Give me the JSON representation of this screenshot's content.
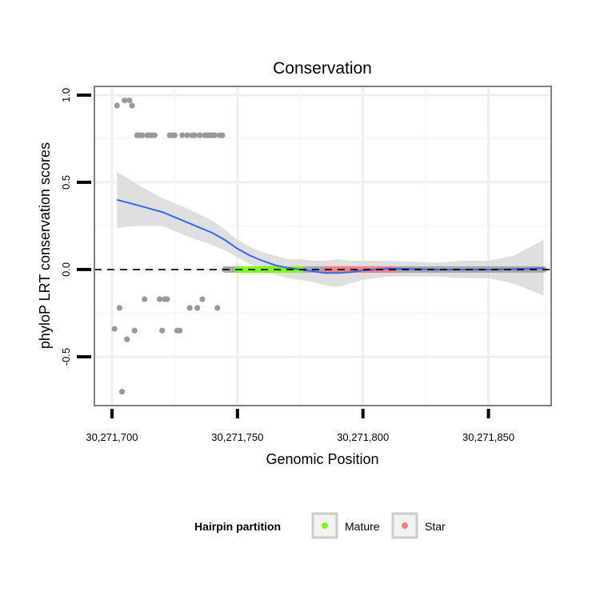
{
  "chart_data": {
    "type": "scatter",
    "title": "Conservation",
    "xlabel": "Genomic Position",
    "ylabel": "phyloP LRT conservation scores",
    "xlim": [
      30271693,
      30271875
    ],
    "ylim": [
      -0.78,
      1.05
    ],
    "x_ticks": [
      30271700,
      30271750,
      30271800,
      30271850
    ],
    "x_tick_labels": [
      "30,271,700",
      "30,271,750",
      "30,271,800",
      "30,271,850"
    ],
    "y_ticks": [
      -0.5,
      0.0,
      0.5,
      1.0
    ],
    "y_tick_labels": [
      "-0.5",
      "0.0",
      "0.5",
      "1.0"
    ],
    "reference_line": {
      "y": 0,
      "style": "dashed",
      "color": "#000000"
    },
    "colors": {
      "points": "#999999",
      "mature": "#7FFF00",
      "star": "#F08080",
      "smooth": "#3366FF",
      "ribbon": "#D9D9D9",
      "band": "#A6A6A6"
    },
    "points": [
      {
        "x": 30271701,
        "y": -0.34
      },
      {
        "x": 30271702,
        "y": 0.94
      },
      {
        "x": 30271703,
        "y": -0.22
      },
      {
        "x": 30271704,
        "y": -0.7
      },
      {
        "x": 30271705,
        "y": 0.97
      },
      {
        "x": 30271706,
        "y": -0.4
      },
      {
        "x": 30271707,
        "y": 0.97
      },
      {
        "x": 30271708,
        "y": 0.94
      },
      {
        "x": 30271709,
        "y": -0.35
      },
      {
        "x": 30271710,
        "y": 0.77
      },
      {
        "x": 30271711,
        "y": 0.77
      },
      {
        "x": 30271712,
        "y": 0.77
      },
      {
        "x": 30271713,
        "y": -0.17
      },
      {
        "x": 30271714,
        "y": 0.77
      },
      {
        "x": 30271715,
        "y": 0.77
      },
      {
        "x": 30271716,
        "y": 0.77
      },
      {
        "x": 30271717,
        "y": 0.77
      },
      {
        "x": 30271719,
        "y": -0.17
      },
      {
        "x": 30271720,
        "y": -0.35
      },
      {
        "x": 30271721,
        "y": -0.17
      },
      {
        "x": 30271722,
        "y": -0.17
      },
      {
        "x": 30271723,
        "y": 0.77
      },
      {
        "x": 30271724,
        "y": 0.77
      },
      {
        "x": 30271725,
        "y": 0.77
      },
      {
        "x": 30271726,
        "y": -0.35
      },
      {
        "x": 30271727,
        "y": -0.35
      },
      {
        "x": 30271728,
        "y": 0.77
      },
      {
        "x": 30271730,
        "y": 0.77
      },
      {
        "x": 30271731,
        "y": -0.22
      },
      {
        "x": 30271732,
        "y": 0.77
      },
      {
        "x": 30271733,
        "y": 0.77
      },
      {
        "x": 30271734,
        "y": -0.22
      },
      {
        "x": 30271735,
        "y": 0.77
      },
      {
        "x": 30271736,
        "y": -0.17
      },
      {
        "x": 30271737,
        "y": 0.77
      },
      {
        "x": 30271738,
        "y": 0.77
      },
      {
        "x": 30271739,
        "y": 0.77
      },
      {
        "x": 30271740,
        "y": 0.77
      },
      {
        "x": 30271741,
        "y": 0.77
      },
      {
        "x": 30271742,
        "y": -0.22
      },
      {
        "x": 30271743,
        "y": 0.77
      },
      {
        "x": 30271744,
        "y": 0.77
      }
    ],
    "zero_band": {
      "x_start": 30271745,
      "x_end": 30271872,
      "y": 0
    },
    "partitions": [
      {
        "name": "Mature",
        "x_start": 30271750,
        "x_end": 30271775,
        "y": 0
      },
      {
        "name": "Star",
        "x_start": 30271785,
        "x_end": 30271812,
        "y": 0
      }
    ],
    "smooth": {
      "x": [
        30271702,
        30271710,
        30271720,
        30271730,
        30271740,
        30271745,
        30271750,
        30271755,
        30271760,
        30271765,
        30271770,
        30271775,
        30271780,
        30271785,
        30271790,
        30271795,
        30271800,
        30271810,
        30271820,
        30271830,
        30271840,
        30271850,
        30271860,
        30271872
      ],
      "y": [
        0.4,
        0.37,
        0.33,
        0.27,
        0.21,
        0.17,
        0.12,
        0.08,
        0.05,
        0.025,
        0.01,
        0.0,
        -0.01,
        -0.02,
        -0.02,
        -0.015,
        -0.005,
        0.005,
        0.003,
        0.0,
        0.0,
        0.0,
        0.002,
        0.008
      ],
      "lower": [
        0.24,
        0.25,
        0.25,
        0.19,
        0.14,
        0.11,
        0.07,
        0.03,
        0.0,
        -0.03,
        -0.05,
        -0.06,
        -0.07,
        -0.09,
        -0.1,
        -0.08,
        -0.06,
        -0.04,
        -0.04,
        -0.04,
        -0.05,
        -0.05,
        -0.08,
        -0.15
      ],
      "upper": [
        0.56,
        0.49,
        0.41,
        0.35,
        0.28,
        0.23,
        0.17,
        0.13,
        0.1,
        0.08,
        0.06,
        0.06,
        0.05,
        0.05,
        0.06,
        0.05,
        0.05,
        0.05,
        0.045,
        0.04,
        0.05,
        0.05,
        0.08,
        0.17
      ]
    },
    "legend": {
      "title": "Hairpin partition",
      "placement": "bottom",
      "entries": [
        {
          "label": "Mature",
          "color": "#7FFF00"
        },
        {
          "label": "Star",
          "color": "#F08080"
        }
      ]
    }
  }
}
